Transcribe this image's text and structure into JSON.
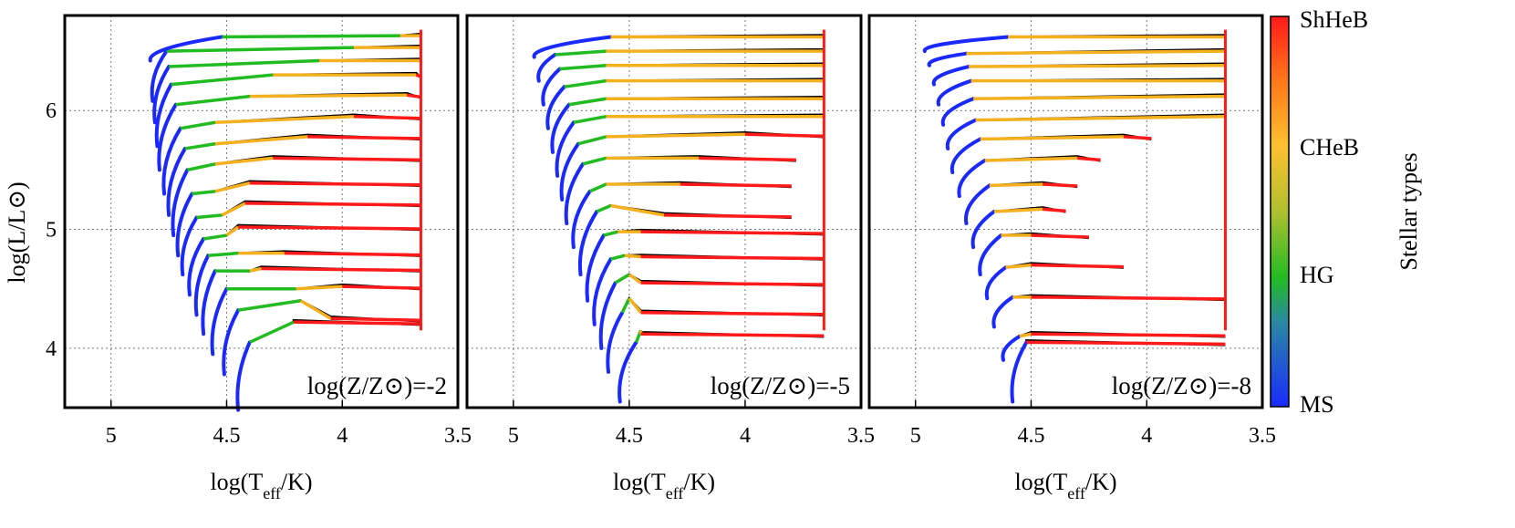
{
  "chart_data": {
    "type": "line",
    "description_free": true,
    "ylabel": "log(L/L⊙)",
    "xlabel_main": "log(T",
    "xlabel_sub": "eff",
    "xlabel_tail": "/K)",
    "xlim": [
      5.2,
      3.5
    ],
    "ylim": [
      3.5,
      6.8
    ],
    "xticks": [
      "5",
      "4.5",
      "4",
      "3.5"
    ],
    "xtick_values": [
      5,
      4.5,
      4,
      3.5
    ],
    "yticks": [
      "4",
      "5",
      "6"
    ],
    "ytick_values": [
      4,
      5,
      6
    ],
    "grid": true,
    "grid_style": "dotted",
    "colorbar": {
      "title": "Stellar types",
      "labels": [
        "ShHeB",
        "CHeB",
        "HG",
        "MS"
      ],
      "colors": [
        "#ff1a1a",
        "#ffb000",
        "#e0c030",
        "#22bb22",
        "#1a2aff"
      ]
    },
    "panels": [
      {
        "annotation": "log(Z/Z⊙)=-2",
        "z_label_pre": "log(Z/Z",
        "z_label_post": ")=-2",
        "tracks": [
          {
            "ms_x": [
              4.45,
              4.4
            ],
            "ms_y": [
              3.48,
              4.05
            ],
            "hg_end_x": 4.21,
            "hg_end_y": 4.22,
            "cheb_end_x": 4.21,
            "red_end_x": 3.66,
            "y_flat": 4.22,
            "black": true
          },
          {
            "ms_x": [
              4.51,
              4.45
            ],
            "ms_y": [
              3.78,
              4.32
            ],
            "hg_end_x": 4.18,
            "hg_end_y": 4.4,
            "cheb_end_x": 4.05,
            "red_end_x": 3.66,
            "y_flat": 4.25,
            "black": true
          },
          {
            "ms_x": [
              4.56,
              4.5
            ],
            "ms_y": [
              3.95,
              4.5
            ],
            "hg_end_x": 4.2,
            "hg_end_y": 4.5,
            "cheb_end_x": 4.0,
            "red_end_x": 3.66,
            "y_flat": 4.52,
            "black": true
          },
          {
            "ms_x": [
              4.6,
              4.55
            ],
            "ms_y": [
              4.12,
              4.65
            ],
            "hg_end_x": 4.4,
            "hg_end_y": 4.65,
            "cheb_end_x": 4.35,
            "red_end_x": 3.66,
            "y_flat": 4.67,
            "black": true
          },
          {
            "ms_x": [
              4.63,
              4.58
            ],
            "ms_y": [
              4.28,
              4.78
            ],
            "hg_end_x": 4.45,
            "hg_end_y": 4.8,
            "cheb_end_x": 4.25,
            "red_end_x": 3.66,
            "y_flat": 4.8,
            "black": true
          },
          {
            "ms_x": [
              4.66,
              4.6
            ],
            "ms_y": [
              4.45,
              4.92
            ],
            "hg_end_x": 4.5,
            "hg_end_y": 4.95,
            "cheb_end_x": 4.45,
            "red_end_x": 3.66,
            "y_flat": 5.02,
            "black": true
          },
          {
            "ms_x": [
              4.69,
              4.63
            ],
            "ms_y": [
              4.62,
              5.1
            ],
            "hg_end_x": 4.52,
            "hg_end_y": 5.12,
            "cheb_end_x": 4.42,
            "red_end_x": 3.66,
            "y_flat": 5.22,
            "black": true
          },
          {
            "ms_x": [
              4.71,
              4.65
            ],
            "ms_y": [
              4.78,
              5.3
            ],
            "hg_end_x": 4.55,
            "hg_end_y": 5.32,
            "cheb_end_x": 4.4,
            "red_end_x": 3.66,
            "y_flat": 5.39,
            "black": true
          },
          {
            "ms_x": [
              4.73,
              4.67
            ],
            "ms_y": [
              4.95,
              5.5
            ],
            "hg_end_x": 4.55,
            "hg_end_y": 5.55,
            "cheb_end_x": 4.3,
            "red_end_x": 3.66,
            "y_flat": 5.6,
            "black": true
          },
          {
            "ms_x": [
              4.75,
              4.68
            ],
            "ms_y": [
              5.12,
              5.68
            ],
            "hg_end_x": 4.55,
            "hg_end_y": 5.72,
            "cheb_end_x": 4.15,
            "red_end_x": 3.66,
            "y_flat": 5.78,
            "black": true
          },
          {
            "ms_x": [
              4.77,
              4.7
            ],
            "ms_y": [
              5.3,
              5.85
            ],
            "hg_end_x": 4.55,
            "hg_end_y": 5.9,
            "cheb_end_x": 3.95,
            "red_end_x": 3.66,
            "y_flat": 5.95,
            "black": true
          },
          {
            "ms_x": [
              4.79,
              4.72
            ],
            "ms_y": [
              5.5,
              6.05
            ],
            "hg_end_x": 4.4,
            "hg_end_y": 6.12,
            "cheb_end_x": 3.72,
            "red_end_x": 3.66,
            "y_flat": 6.13,
            "black": true
          },
          {
            "ms_x": [
              4.8,
              4.74
            ],
            "ms_y": [
              5.7,
              6.22
            ],
            "hg_end_x": 4.3,
            "hg_end_y": 6.3,
            "cheb_end_x": 3.68,
            "red_end_x": 3.66,
            "y_flat": 6.3,
            "black": true
          },
          {
            "ms_x": [
              4.81,
              4.75
            ],
            "ms_y": [
              5.9,
              6.37
            ],
            "hg_end_x": 4.1,
            "hg_end_y": 6.42,
            "cheb_end_x": 3.66,
            "red_end_x": 3.66,
            "y_flat": 6.42,
            "black": true
          },
          {
            "ms_x": [
              4.82,
              4.76
            ],
            "ms_y": [
              6.08,
              6.5
            ],
            "hg_end_x": 3.95,
            "hg_end_y": 6.53,
            "cheb_end_x": 3.66,
            "red_end_x": 3.66,
            "y_flat": 6.53,
            "black": true
          },
          {
            "ms_x": [
              4.83,
              4.52
            ],
            "ms_y": [
              6.42,
              6.62
            ],
            "hg_end_x": 3.75,
            "hg_end_y": 6.63,
            "cheb_end_x": 3.66,
            "red_end_x": 3.66,
            "y_flat": 6.63,
            "black": true
          }
        ]
      },
      {
        "annotation": "log(Z/Z⊙)=-5",
        "z_label_pre": "log(Z/Z",
        "z_label_post": ")=-5",
        "tracks": [
          {
            "ms_x": [
              4.54,
              4.47
            ],
            "ms_y": [
              3.55,
              4.05
            ],
            "hg_end_x": 4.45,
            "hg_end_y": 4.15,
            "cheb_end_x": 4.45,
            "red_end_x": 3.66,
            "y_flat": 4.12,
            "black": true
          },
          {
            "ms_x": [
              4.59,
              4.53
            ],
            "ms_y": [
              3.8,
              4.3
            ],
            "hg_end_x": 4.5,
            "hg_end_y": 4.42,
            "cheb_end_x": 4.45,
            "red_end_x": 3.66,
            "y_flat": 4.3,
            "black": true
          },
          {
            "ms_x": [
              4.62,
              4.56
            ],
            "ms_y": [
              4.0,
              4.55
            ],
            "hg_end_x": 4.5,
            "hg_end_y": 4.62,
            "cheb_end_x": 4.45,
            "red_end_x": 3.66,
            "y_flat": 4.55,
            "black": true
          },
          {
            "ms_x": [
              4.65,
              4.58
            ],
            "ms_y": [
              4.2,
              4.75
            ],
            "hg_end_x": 4.52,
            "hg_end_y": 4.78,
            "cheb_end_x": 4.45,
            "red_end_x": 3.66,
            "y_flat": 4.77,
            "black": true
          },
          {
            "ms_x": [
              4.68,
              4.61
            ],
            "ms_y": [
              4.4,
              4.95
            ],
            "hg_end_x": 4.55,
            "hg_end_y": 4.98,
            "cheb_end_x": 4.45,
            "red_end_x": 3.66,
            "y_flat": 4.98,
            "black": true
          },
          {
            "ms_x": [
              4.71,
              4.64
            ],
            "ms_y": [
              4.62,
              5.15
            ],
            "hg_end_x": 4.58,
            "hg_end_y": 5.2,
            "cheb_end_x": 4.35,
            "red_end_x": 3.8,
            "y_flat": 5.12,
            "black": true
          },
          {
            "ms_x": [
              4.74,
              4.67
            ],
            "ms_y": [
              4.85,
              5.32
            ],
            "hg_end_x": 4.6,
            "hg_end_y": 5.38,
            "cheb_end_x": 4.28,
            "red_end_x": 3.8,
            "y_flat": 5.38,
            "black": true
          },
          {
            "ms_x": [
              4.77,
              4.7
            ],
            "ms_y": [
              5.05,
              5.55
            ],
            "hg_end_x": 4.6,
            "hg_end_y": 5.6,
            "cheb_end_x": 4.2,
            "red_end_x": 3.78,
            "y_flat": 5.6,
            "black": true
          },
          {
            "ms_x": [
              4.79,
              4.72
            ],
            "ms_y": [
              5.25,
              5.72
            ],
            "hg_end_x": 4.6,
            "hg_end_y": 5.78,
            "cheb_end_x": 4.0,
            "red_end_x": 3.66,
            "y_flat": 5.8,
            "black": true
          },
          {
            "ms_x": [
              4.81,
              4.74
            ],
            "ms_y": [
              5.45,
              5.9
            ],
            "hg_end_x": 4.6,
            "hg_end_y": 5.95,
            "cheb_end_x": 3.66,
            "red_end_x": 3.66,
            "y_flat": 5.95,
            "black": true
          },
          {
            "ms_x": [
              4.83,
              4.76
            ],
            "ms_y": [
              5.65,
              6.05
            ],
            "hg_end_x": 4.6,
            "hg_end_y": 6.1,
            "cheb_end_x": 3.66,
            "red_end_x": 3.66,
            "y_flat": 6.1,
            "black": true
          },
          {
            "ms_x": [
              4.85,
              4.78
            ],
            "ms_y": [
              5.85,
              6.2
            ],
            "hg_end_x": 4.6,
            "hg_end_y": 6.25,
            "cheb_end_x": 3.66,
            "red_end_x": 3.66,
            "y_flat": 6.25,
            "black": true
          },
          {
            "ms_x": [
              4.87,
              4.8
            ],
            "ms_y": [
              6.05,
              6.35
            ],
            "hg_end_x": 4.6,
            "hg_end_y": 6.38,
            "cheb_end_x": 3.66,
            "red_end_x": 3.66,
            "y_flat": 6.38,
            "black": true
          },
          {
            "ms_x": [
              4.89,
              4.82
            ],
            "ms_y": [
              6.25,
              6.47
            ],
            "hg_end_x": 4.6,
            "hg_end_y": 6.5,
            "cheb_end_x": 3.66,
            "red_end_x": 3.66,
            "y_flat": 6.5,
            "black": true
          },
          {
            "ms_x": [
              4.91,
              4.58
            ],
            "ms_y": [
              6.45,
              6.62
            ],
            "hg_end_x": 4.58,
            "hg_end_y": 6.62,
            "cheb_end_x": 3.66,
            "red_end_x": 3.66,
            "y_flat": 6.62,
            "black": true
          }
        ]
      },
      {
        "annotation": "log(Z/Z⊙)=-8",
        "z_label_pre": "log(Z/Z",
        "z_label_post": ")=-8",
        "tracks": [
          {
            "ms_x": [
              4.58,
              4.52
            ],
            "ms_y": [
              3.55,
              4.05
            ],
            "hg_end_x": 4.52,
            "hg_end_y": 4.05,
            "cheb_end_x": 4.52,
            "red_end_x": 3.66,
            "y_flat": 4.05,
            "black": true
          },
          {
            "ms_x": [
              4.62,
              4.55
            ],
            "ms_y": [
              3.9,
              4.1
            ],
            "hg_end_x": 4.55,
            "hg_end_y": 4.1,
            "cheb_end_x": 4.5,
            "red_end_x": 3.66,
            "y_flat": 4.12,
            "black": true
          },
          {
            "ms_x": [
              4.66,
              4.58
            ],
            "ms_y": [
              4.18,
              4.43
            ],
            "hg_end_x": 4.58,
            "hg_end_y": 4.43,
            "cheb_end_x": 4.5,
            "red_end_x": 3.66,
            "y_flat": 4.43,
            "black": true
          },
          {
            "ms_x": [
              4.69,
              4.61
            ],
            "ms_y": [
              4.42,
              4.68
            ],
            "hg_end_x": 4.61,
            "hg_end_y": 4.68,
            "cheb_end_x": 4.5,
            "red_end_x": 4.1,
            "y_flat": 4.7,
            "black": true
          },
          {
            "ms_x": [
              4.72,
              4.63
            ],
            "ms_y": [
              4.62,
              4.95
            ],
            "hg_end_x": 4.63,
            "hg_end_y": 4.95,
            "cheb_end_x": 4.5,
            "red_end_x": 4.25,
            "y_flat": 4.95,
            "black": true
          },
          {
            "ms_x": [
              4.75,
              4.66
            ],
            "ms_y": [
              4.85,
              5.15
            ],
            "hg_end_x": 4.66,
            "hg_end_y": 5.15,
            "cheb_end_x": 4.45,
            "red_end_x": 4.35,
            "y_flat": 5.17,
            "black": true
          },
          {
            "ms_x": [
              4.78,
              4.68
            ],
            "ms_y": [
              5.05,
              5.37
            ],
            "hg_end_x": 4.68,
            "hg_end_y": 5.37,
            "cheb_end_x": 4.45,
            "red_end_x": 4.3,
            "y_flat": 5.38,
            "black": true
          },
          {
            "ms_x": [
              4.81,
              4.7
            ],
            "ms_y": [
              5.28,
              5.58
            ],
            "hg_end_x": 4.7,
            "hg_end_y": 5.58,
            "cheb_end_x": 4.3,
            "red_end_x": 4.2,
            "y_flat": 5.6,
            "black": true
          },
          {
            "ms_x": [
              4.84,
              4.72
            ],
            "ms_y": [
              5.48,
              5.76
            ],
            "hg_end_x": 4.72,
            "hg_end_y": 5.76,
            "cheb_end_x": 4.1,
            "red_end_x": 3.98,
            "y_flat": 5.78,
            "black": true
          },
          {
            "ms_x": [
              4.86,
              4.74
            ],
            "ms_y": [
              5.68,
              5.92
            ],
            "hg_end_x": 4.74,
            "hg_end_y": 5.92,
            "cheb_end_x": 3.66,
            "red_end_x": 3.66,
            "y_flat": 5.95,
            "black": true
          },
          {
            "ms_x": [
              4.88,
              4.75
            ],
            "ms_y": [
              5.88,
              6.1
            ],
            "hg_end_x": 4.75,
            "hg_end_y": 6.1,
            "cheb_end_x": 3.66,
            "red_end_x": 3.66,
            "y_flat": 6.12,
            "black": true
          },
          {
            "ms_x": [
              4.9,
              4.76
            ],
            "ms_y": [
              6.05,
              6.25
            ],
            "hg_end_x": 4.76,
            "hg_end_y": 6.25,
            "cheb_end_x": 3.66,
            "red_end_x": 3.66,
            "y_flat": 6.25,
            "black": true
          },
          {
            "ms_x": [
              4.92,
              4.77
            ],
            "ms_y": [
              6.22,
              6.37
            ],
            "hg_end_x": 4.77,
            "hg_end_y": 6.37,
            "cheb_end_x": 3.66,
            "red_end_x": 3.66,
            "y_flat": 6.38,
            "black": true
          },
          {
            "ms_x": [
              4.94,
              4.78
            ],
            "ms_y": [
              6.38,
              6.48
            ],
            "hg_end_x": 4.78,
            "hg_end_y": 6.48,
            "cheb_end_x": 3.66,
            "red_end_x": 3.66,
            "y_flat": 6.5,
            "black": true
          },
          {
            "ms_x": [
              4.96,
              4.6
            ],
            "ms_y": [
              6.5,
              6.62
            ],
            "hg_end_x": 4.6,
            "hg_end_y": 6.62,
            "cheb_end_x": 3.66,
            "red_end_x": 3.66,
            "y_flat": 6.62,
            "black": true
          }
        ]
      }
    ]
  }
}
